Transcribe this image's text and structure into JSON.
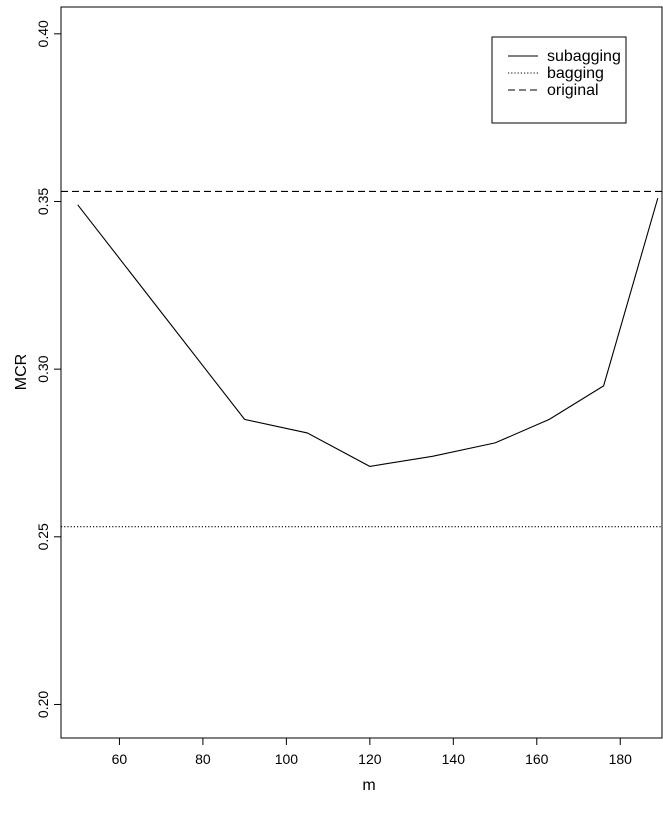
{
  "chart_data": {
    "type": "line",
    "title": "",
    "xlabel": "m",
    "ylabel": "MCR",
    "xlim": [
      46,
      190
    ],
    "ylim": [
      0.19,
      0.408
    ],
    "x_ticks": [
      60,
      80,
      100,
      120,
      140,
      160,
      180
    ],
    "x_tick_labels": [
      "60",
      "80",
      "100",
      "120",
      "140",
      "160",
      "180"
    ],
    "y_ticks": [
      0.2,
      0.25,
      0.3,
      0.35,
      0.4
    ],
    "y_tick_labels": [
      "0.20",
      "0.25",
      "0.30",
      "0.35",
      "0.40"
    ],
    "grid": false,
    "legend_position": "top-right",
    "series": [
      {
        "name": "subagging",
        "style": "solid",
        "x": [
          50,
          90,
          105,
          120,
          135,
          150,
          163,
          176,
          189
        ],
        "y": [
          0.349,
          0.285,
          0.281,
          0.271,
          0.274,
          0.278,
          0.285,
          0.295,
          0.351
        ]
      },
      {
        "name": "bagging",
        "style": "dotted",
        "x": [
          46,
          190
        ],
        "y": [
          0.253,
          0.253
        ]
      },
      {
        "name": "original",
        "style": "dashed",
        "x": [
          46,
          190
        ],
        "y": [
          0.353,
          0.353
        ]
      }
    ]
  }
}
